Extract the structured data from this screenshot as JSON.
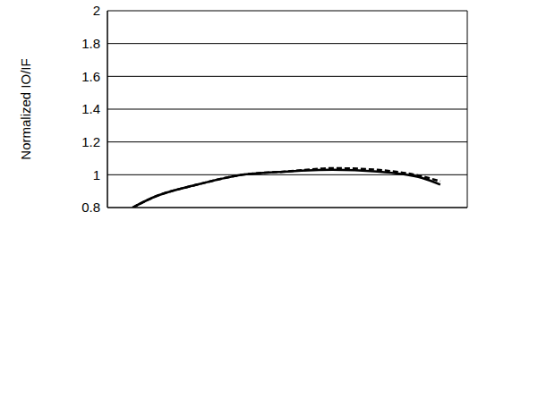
{
  "chart_data": {
    "type": "line",
    "ylabel": "Normalized IO/IF",
    "x": [
      0.56,
      1,
      2,
      3,
      4,
      5,
      6,
      7,
      7.4
    ],
    "series": [
      {
        "color": "#000000",
        "line_style": "solid",
        "values": [
          0.8,
          0.86,
          0.94,
          1.0,
          1.02,
          1.03,
          1.02,
          0.98,
          0.94
        ]
      },
      {
        "color": "#000000",
        "line_style": "dashed",
        "values": [
          0.8,
          0.86,
          0.94,
          1.0,
          1.02,
          1.04,
          1.03,
          0.99,
          0.96
        ]
      }
    ],
    "xlim": [
      0,
      8
    ],
    "xticks": [
      0,
      1,
      2,
      3,
      4,
      5,
      6,
      7,
      8
    ],
    "ylim": [
      0.8,
      2
    ],
    "yticks": [
      0.8,
      1,
      1.2,
      1.4,
      1.6,
      1.8,
      2
    ],
    "grid": true,
    "tick_labels": "y"
  }
}
